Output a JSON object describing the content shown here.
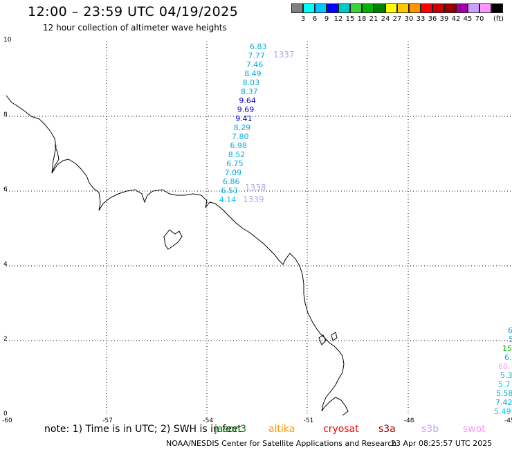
{
  "header": {
    "title": "12:00 – 23:59 UTC 04/19/2025",
    "subtitle": "12 hour collection of altimeter wave heights"
  },
  "legend": {
    "colors": [
      "#808080",
      "#00ffff",
      "#00c8ff",
      "#0000ff",
      "#00c8c8",
      "#3cd23c",
      "#00b400",
      "#008200",
      "#ffff00",
      "#ffc800",
      "#ff9600",
      "#ff0000",
      "#c80000",
      "#960000",
      "#a000a0",
      "#c8a0ff",
      "#ff96ff",
      "#000000"
    ],
    "ticks": [
      "3",
      "6",
      "9",
      "12",
      "15",
      "18",
      "21",
      "24",
      "27",
      "30",
      "33",
      "36",
      "39",
      "42",
      "45",
      "70"
    ],
    "unit": "(ft)"
  },
  "axes": {
    "x_ticks": [
      "-60",
      "-57",
      "-54",
      "-51",
      "-48",
      "-45"
    ],
    "y_ticks": [
      "0",
      "2",
      "4",
      "6",
      "8",
      "10"
    ]
  },
  "swh_track": [
    {
      "value": "6.83",
      "color": "#00a8dc"
    },
    {
      "value": "7.77",
      "color": "#00a8dc"
    },
    {
      "value": "7.46",
      "color": "#00a8dc"
    },
    {
      "value": "8.49",
      "color": "#00a8dc"
    },
    {
      "value": "8.03",
      "color": "#00a8dc"
    },
    {
      "value": "8.37",
      "color": "#00a8dc"
    },
    {
      "value": "9.64",
      "color": "#0000c8"
    },
    {
      "value": "9.69",
      "color": "#0000c8"
    },
    {
      "value": "9.41",
      "color": "#0000c8"
    },
    {
      "value": "8.29",
      "color": "#00a8dc"
    },
    {
      "value": "7.80",
      "color": "#00a8dc"
    },
    {
      "value": "6.98",
      "color": "#00a8dc"
    },
    {
      "value": "8.52",
      "color": "#00a8dc"
    },
    {
      "value": "6.75",
      "color": "#00a8dc"
    },
    {
      "value": "7.09",
      "color": "#00a8dc"
    },
    {
      "value": "6.86",
      "color": "#00a8dc"
    },
    {
      "value": "6.53",
      "color": "#00a8dc"
    },
    {
      "value": "4.14",
      "color": "#00c8ff"
    }
  ],
  "pass_labels": [
    "1337",
    "1338",
    "1339"
  ],
  "right_edge_values": [
    {
      "value": "6",
      "color": "#00a8dc"
    },
    {
      "value": "5",
      "color": "#00a8dc"
    },
    {
      "value": "15",
      "color": "#00b400"
    },
    {
      "value": "6.",
      "color": "#00a8dc"
    },
    {
      "value": "60.",
      "color": "#ff96ff"
    },
    {
      "value": "5.3",
      "color": "#00a8dc"
    },
    {
      "value": "5.7",
      "color": "#00c8ff"
    },
    {
      "value": "5.58",
      "color": "#00a8dc"
    },
    {
      "value": "7.42",
      "color": "#00a8dc"
    },
    {
      "value": "5.49",
      "color": "#00c8ff"
    }
  ],
  "footer": {
    "note": "note:  1) Time is in UTC;  2) SWH is in feet",
    "satellites": [
      {
        "name": "jason3",
        "color": "#008200"
      },
      {
        "name": "altika",
        "color": "#ff9600"
      },
      {
        "name": "cryosat",
        "color": "#ff0000"
      },
      {
        "name": "s3a",
        "color": "#960000"
      },
      {
        "name": "s3b",
        "color": "#c8a0ff"
      },
      {
        "name": "swot",
        "color": "#ff96ff"
      }
    ],
    "credit": "NOAA/NESDIS Center for Satellite Applications and Research",
    "timestamp": "23 Apr 08:25:57 UTC 2025"
  }
}
